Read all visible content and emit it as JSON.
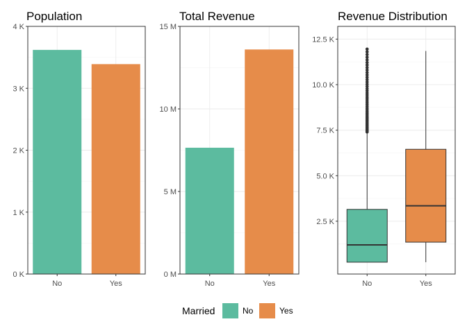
{
  "colors": {
    "No": "#5cbb9f",
    "Yes": "#e68c4a"
  },
  "legend": {
    "title": "Married",
    "items": [
      "No",
      "Yes"
    ]
  },
  "chart_data": [
    {
      "type": "bar",
      "title": "Population",
      "categories": [
        "No",
        "Yes"
      ],
      "values": [
        3620,
        3390
      ],
      "ylim": [
        0,
        4000
      ],
      "yticks": [
        0,
        1000,
        2000,
        3000,
        4000
      ],
      "ytick_labels": [
        "0 K",
        "1 K",
        "2 K",
        "3 K",
        "4 K"
      ],
      "xlabel": "",
      "ylabel": "",
      "grid": true
    },
    {
      "type": "bar",
      "title": "Total Revenue",
      "categories": [
        "No",
        "Yes"
      ],
      "values": [
        7650000,
        13600000
      ],
      "ylim": [
        0,
        15000000
      ],
      "yticks": [
        0,
        5000000,
        10000000,
        15000000
      ],
      "ytick_labels": [
        "0 M",
        "5 M",
        "10 M",
        "15 M"
      ],
      "xlabel": "",
      "ylabel": "",
      "grid": true
    },
    {
      "type": "box",
      "title": "Revenue Distribution",
      "categories": [
        "No",
        "Yes"
      ],
      "boxes": [
        {
          "name": "No",
          "whisker_low": 250,
          "q1": 250,
          "median": 1200,
          "q3": 3150,
          "whisker_high": 7400,
          "outliers_from": 7400,
          "outliers_to": 11950
        },
        {
          "name": "Yes",
          "whisker_low": 250,
          "q1": 1350,
          "median": 3350,
          "q3": 6450,
          "whisker_high": 11850
        }
      ],
      "ylim": [
        -400,
        13200
      ],
      "yticks": [
        2500,
        5000,
        7500,
        10000,
        12500
      ],
      "ytick_labels": [
        "2.5 K",
        "5.0 K",
        "7.5 K",
        "10.0 K",
        "12.5 K"
      ],
      "xlabel": "",
      "ylabel": "",
      "grid": true
    }
  ]
}
